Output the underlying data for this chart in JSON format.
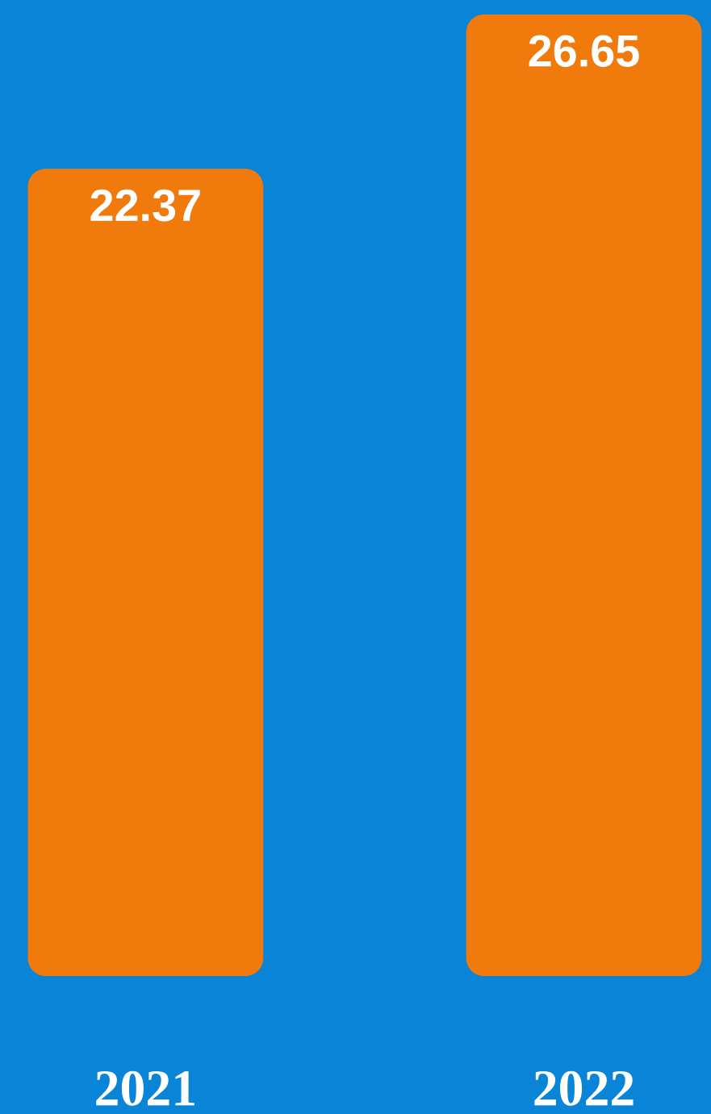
{
  "chart_data": {
    "type": "bar",
    "categories": [
      "2021",
      "2022"
    ],
    "values": [
      22.37,
      26.65
    ],
    "color": "#f07a0c",
    "data_labels": true
  }
}
